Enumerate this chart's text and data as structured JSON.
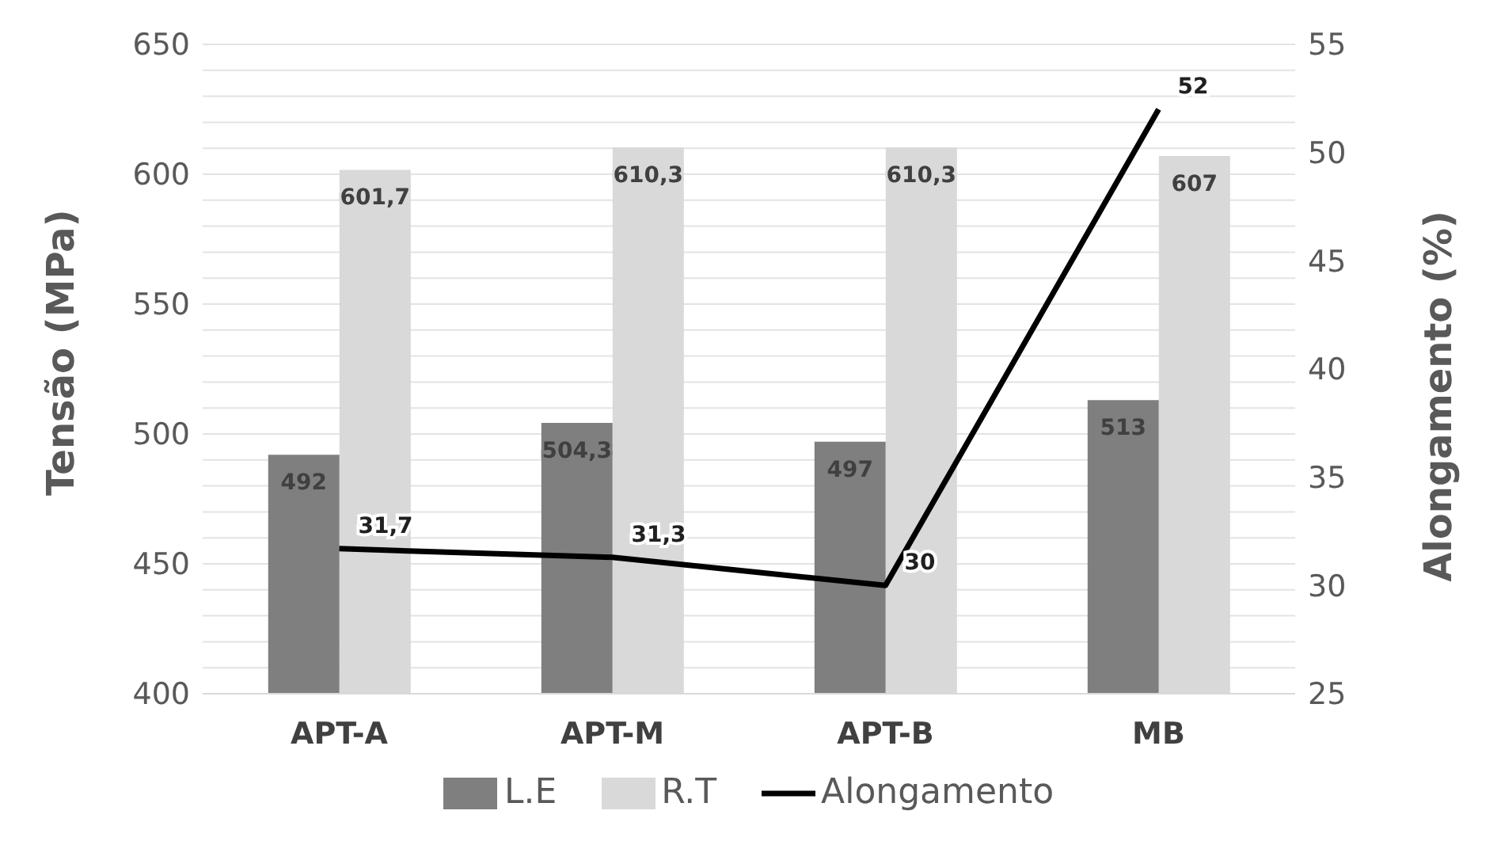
{
  "chart_data": {
    "type": "bar",
    "ylabel": "Tensão (MPa)",
    "y2label": "Alongamento (%)",
    "categories": [
      "APT-A",
      "APT-M",
      "APT-B",
      "MB"
    ],
    "series": [
      {
        "name": "L.E",
        "color": "#7f7f7f",
        "values": [
          492,
          504.3,
          497,
          513
        ],
        "value_labels": [
          "492",
          "504,3",
          "497",
          "513"
        ]
      },
      {
        "name": "R.T",
        "color": "#d9d9d9",
        "values": [
          601.7,
          610.3,
          610.3,
          607
        ],
        "value_labels": [
          "601,7",
          "610,3",
          "610,3",
          "607"
        ]
      },
      {
        "name": "Alongamento",
        "type": "line",
        "axis": "y2",
        "color": "#000000",
        "values": [
          31.7,
          31.3,
          30,
          52
        ],
        "value_labels": [
          "31,7",
          "31,3",
          "30",
          "52"
        ]
      }
    ],
    "ylim": [
      400,
      650
    ],
    "yticks": [
      400,
      {
        "value": 410,
        "label": null
      },
      {
        "value": 420,
        "label": null
      },
      {
        "value": 430,
        "label": null
      },
      {
        "value": 440,
        "label": null
      },
      450,
      {
        "value": 460,
        "label": null
      },
      {
        "value": 470,
        "label": null
      },
      {
        "value": 480,
        "label": null
      },
      {
        "value": 490,
        "label": null
      },
      500,
      {
        "value": 510,
        "label": null
      },
      {
        "value": 520,
        "label": null
      },
      {
        "value": 530,
        "label": null
      },
      {
        "value": 540,
        "label": null
      },
      550,
      {
        "value": 560,
        "label": null
      },
      {
        "value": 570,
        "label": null
      },
      {
        "value": 580,
        "label": null
      },
      {
        "value": 590,
        "label": null
      },
      600,
      {
        "value": 610,
        "label": null
      },
      {
        "value": 620,
        "label": null
      },
      {
        "value": 630,
        "label": null
      },
      {
        "value": 640,
        "label": null
      },
      650
    ],
    "y2lim": [
      25,
      55
    ],
    "y2ticks": [
      25,
      30,
      35,
      40,
      45,
      50,
      55
    ],
    "grid": "y",
    "legend": "bottom",
    "marker": "none",
    "line_style": "solid"
  }
}
